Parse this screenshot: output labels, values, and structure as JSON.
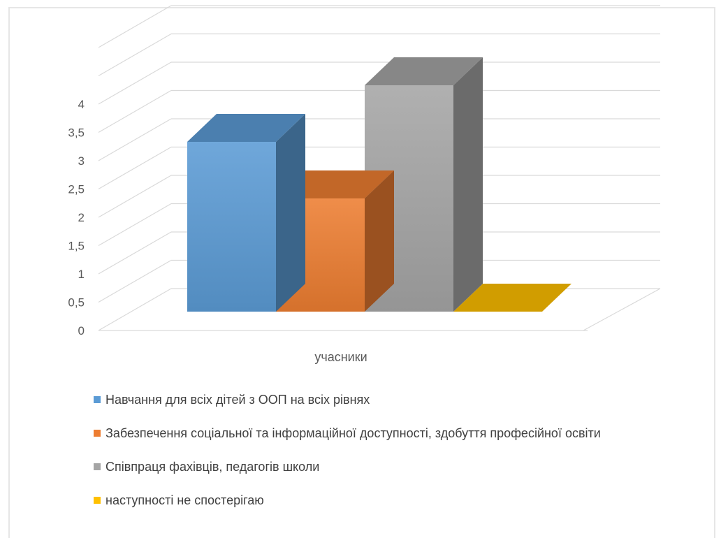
{
  "chart_data": {
    "type": "bar",
    "categories": [
      "учасники"
    ],
    "series": [
      {
        "name": "Навчання для всіх дітей з ООП на всіх рівнях",
        "values": [
          3
        ],
        "color": "#5b9bd5"
      },
      {
        "name": "Забезпечення соціальної та інформаційної доступності, здобуття професійної освіти",
        "values": [
          2
        ],
        "color": "#ed7d31"
      },
      {
        "name": "Співпраця фахівців, педагогів школи",
        "values": [
          4
        ],
        "color": "#a5a5a5"
      },
      {
        "name": "наступності не спостерігаю",
        "values": [
          0
        ],
        "color": "#ffc000"
      }
    ],
    "y_ticks": [
      "0",
      "0,5",
      "1",
      "1,5",
      "2",
      "2,5",
      "3",
      "3,5",
      "4"
    ],
    "ylim": [
      0,
      4
    ],
    "grid": true,
    "legend": "bottom-left",
    "view": "3d-column"
  }
}
